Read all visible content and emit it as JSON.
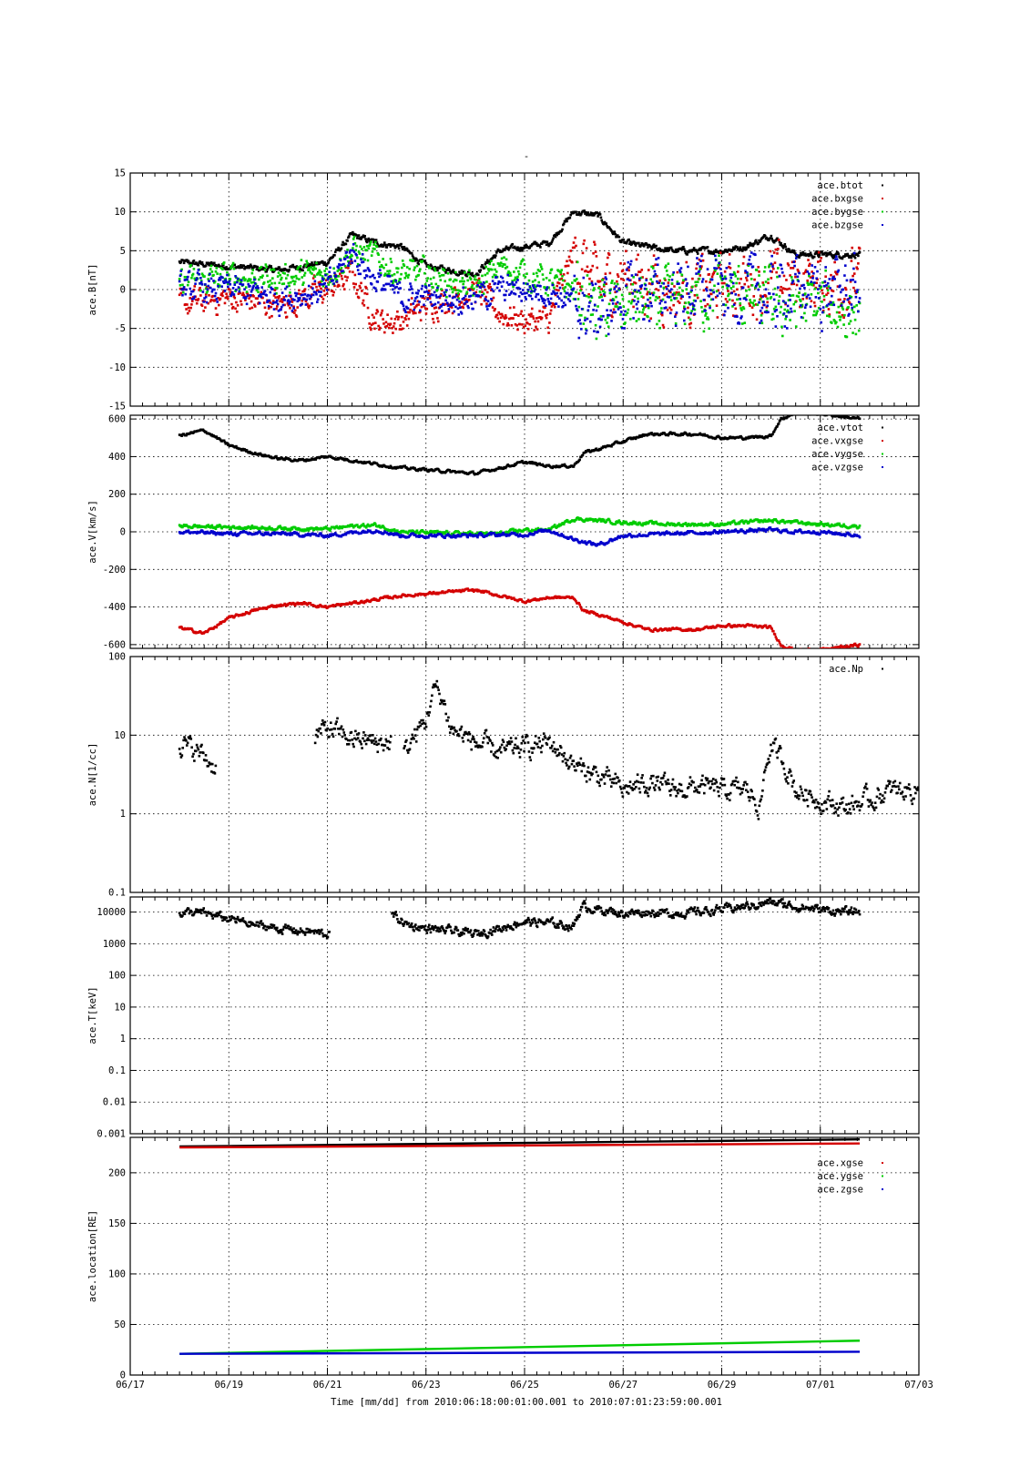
{
  "figure": {
    "title": "-",
    "xlabel": "Time [mm/dd]  from 2010:06:18:00:01:00.001  to  2010:07:01:23:59:00.001",
    "colors": {
      "black": "#000000",
      "red": "#d40000",
      "green": "#00cc00",
      "blue": "#0000cc"
    }
  },
  "chart_data": [
    {
      "type": "scatter",
      "ylabel": "ace.B[nT]",
      "xlim": [
        "06/17",
        "07/03"
      ],
      "ylim": [
        -15,
        15
      ],
      "ytick_labels": [
        "-15",
        "-10",
        "-5",
        "0",
        "5",
        "10",
        "15"
      ],
      "grid": true,
      "legend": "top-right",
      "series": [
        {
          "name": "ace.btot",
          "color": "#000000",
          "x": [
            "06/18",
            "06/19",
            "06/20",
            "06/21",
            "06/21.5",
            "06/22",
            "06/22.5",
            "06/23",
            "06/24",
            "06/24.5",
            "06/25",
            "06/25.5",
            "06/26",
            "06/26.5",
            "06/27",
            "06/28",
            "06/29",
            "06/29.5",
            "06/30",
            "06/30.5",
            "07/01",
            "07/01.8"
          ],
          "values": [
            3.5,
            3,
            2.5,
            3.5,
            7,
            6,
            5.5,
            3,
            2,
            5,
            5.5,
            6,
            10,
            9.5,
            6,
            5,
            5,
            5.5,
            7,
            4.5,
            4.5,
            4.5
          ]
        },
        {
          "name": "ace.bxgse",
          "color": "#d40000",
          "x": [
            "06/18",
            "06/19",
            "06/20",
            "06/21",
            "06/21.5",
            "06/22",
            "06/22.5",
            "06/23",
            "06/24",
            "06/24.5",
            "06/25",
            "06/25.5",
            "06/26",
            "06/26.5",
            "06/27",
            "06/28",
            "06/29",
            "06/29.5",
            "06/30",
            "06/30.5",
            "07/01",
            "07/01.8"
          ],
          "values": [
            -2,
            -1,
            -2,
            0,
            2,
            -4,
            -4,
            -2,
            0,
            -3,
            -4,
            -4,
            5,
            0,
            2,
            0,
            0,
            1,
            1,
            1,
            1,
            1
          ]
        },
        {
          "name": "ace.bygse",
          "color": "#00cc00",
          "x": [
            "06/18",
            "06/19",
            "06/20",
            "06/21",
            "06/21.5",
            "06/22",
            "06/22.5",
            "06/23",
            "06/24",
            "06/24.5",
            "06/25",
            "06/25.5",
            "06/26",
            "06/26.5",
            "06/27",
            "06/28",
            "06/29",
            "06/29.5",
            "06/30",
            "06/30.5",
            "07/01",
            "07/01.8"
          ],
          "values": [
            1,
            1.5,
            1.5,
            2,
            5,
            4,
            2,
            2,
            0,
            3,
            2,
            1,
            0,
            -3,
            -2,
            -2,
            0,
            -1,
            -2,
            -2,
            -2,
            -3
          ]
        },
        {
          "name": "ace.bzgse",
          "color": "#0000cc",
          "x": [
            "06/18",
            "06/19",
            "06/20",
            "06/21",
            "06/21.5",
            "06/22",
            "06/22.5",
            "06/23",
            "06/24",
            "06/24.5",
            "06/25",
            "06/25.5",
            "06/26",
            "06/26.5",
            "06/27",
            "06/28",
            "06/29",
            "06/29.5",
            "06/30",
            "06/30.5",
            "07/01",
            "07/01.8"
          ],
          "values": [
            0,
            0,
            -1,
            0,
            5,
            1,
            -1,
            -1,
            -1,
            0,
            0,
            0,
            -2,
            -3,
            -1,
            0,
            0,
            0,
            -1,
            0,
            0,
            0
          ]
        }
      ]
    },
    {
      "type": "scatter",
      "ylabel": "ace.V[km/s]",
      "xlim": [
        "06/17",
        "07/03"
      ],
      "ylim": [
        -620,
        620
      ],
      "ytick_labels": [
        "-600",
        "-400",
        "-200",
        "0",
        "200",
        "400",
        "600"
      ],
      "grid": true,
      "legend": "top-right",
      "series": [
        {
          "name": "ace.vtot",
          "color": "#000000",
          "x": [
            "06/18",
            "06/18.5",
            "06/19",
            "06/19.5",
            "06/20",
            "06/20.5",
            "06/21",
            "06/21.5",
            "06/22",
            "06/22.5",
            "06/23",
            "06/23.5",
            "06/24",
            "06/24.5",
            "06/25",
            "06/25.5",
            "06/26",
            "06/26.2",
            "06/26.5",
            "06/27",
            "06/27.5",
            "06/28",
            "06/28.5",
            "06/29",
            "06/29.5",
            "06/30",
            "06/30.2",
            "06/30.5",
            "07/01",
            "07/01.8"
          ],
          "values": [
            510,
            540,
            460,
            420,
            390,
            380,
            400,
            380,
            360,
            340,
            330,
            320,
            310,
            340,
            370,
            350,
            350,
            420,
            440,
            480,
            520,
            520,
            520,
            500,
            500,
            510,
            600,
            630,
            630,
            600
          ]
        },
        {
          "name": "ace.vxgse",
          "color": "#d40000",
          "x": [
            "06/18",
            "06/18.5",
            "06/19",
            "06/19.5",
            "06/20",
            "06/20.5",
            "06/21",
            "06/21.5",
            "06/22",
            "06/22.5",
            "06/23",
            "06/23.5",
            "06/24",
            "06/24.5",
            "06/25",
            "06/25.5",
            "06/26",
            "06/26.2",
            "06/26.5",
            "06/27",
            "06/27.5",
            "06/28",
            "06/28.5",
            "06/29",
            "06/29.5",
            "06/30",
            "06/30.2",
            "06/30.5",
            "07/01",
            "07/01.8"
          ],
          "values": [
            -510,
            -540,
            -460,
            -420,
            -390,
            -380,
            -400,
            -380,
            -360,
            -340,
            -330,
            -320,
            -310,
            -340,
            -370,
            -350,
            -350,
            -420,
            -440,
            -480,
            -520,
            -520,
            -520,
            -500,
            -500,
            -510,
            -600,
            -630,
            -630,
            -600
          ]
        },
        {
          "name": "ace.vygse",
          "color": "#00cc00",
          "x": [
            "06/18",
            "06/19",
            "06/20",
            "06/21",
            "06/21.5",
            "06/22",
            "06/22.5",
            "06/23",
            "06/24",
            "06/24.5",
            "06/25",
            "06/25.5",
            "06/26",
            "06/26.5",
            "06/27",
            "06/28",
            "06/29",
            "06/30",
            "06/30.5",
            "07/01",
            "07/01.8"
          ],
          "values": [
            30,
            25,
            20,
            15,
            30,
            35,
            0,
            -5,
            -10,
            -10,
            10,
            10,
            70,
            60,
            50,
            40,
            40,
            60,
            50,
            40,
            30
          ]
        },
        {
          "name": "ace.vzgse",
          "color": "#0000cc",
          "x": [
            "06/18",
            "06/19",
            "06/20",
            "06/21",
            "06/21.5",
            "06/22",
            "06/22.5",
            "06/23",
            "06/24",
            "06/24.5",
            "06/25",
            "06/25.5",
            "06/26",
            "06/26.5",
            "06/27",
            "06/28",
            "06/29",
            "06/30",
            "06/30.5",
            "07/01",
            "07/01.8"
          ],
          "values": [
            0,
            -10,
            -10,
            -20,
            -5,
            10,
            -20,
            -20,
            -20,
            -15,
            -15,
            10,
            -40,
            -70,
            -20,
            -10,
            0,
            10,
            0,
            0,
            -20
          ]
        }
      ]
    },
    {
      "type": "scatter",
      "ylabel": "ace.N[1/cc]",
      "xlim": [
        "06/17",
        "07/03"
      ],
      "ylim": [
        0.1,
        100
      ],
      "yscale": "log",
      "ytick_labels": [
        "0.1",
        "1",
        "10",
        "100"
      ],
      "grid": true,
      "legend": "top-right",
      "series": [
        {
          "name": "ace.Np",
          "color": "#000000",
          "x": [
            "06/18",
            "06/18.4",
            "06/18.7",
            "06/20.8",
            "06/21",
            "06/21.5",
            "06/22",
            "06/22.3",
            "06/22.6",
            "06/23",
            "06/23.2",
            "06/23.5",
            "06/24",
            "06/24.5",
            "06/25",
            "06/25.5",
            "06/26",
            "06/26.5",
            "06/27",
            "06/27.5",
            "06/28",
            "06/28.5",
            "06/29",
            "06/29.5",
            "06/29.8",
            "06/30",
            "06/30.5",
            "07/01",
            "07/01.5",
            "07/02",
            "07/02.5",
            "07/03"
          ],
          "values": [
            8,
            6,
            4,
            10,
            12,
            9,
            8,
            8,
            6,
            15,
            40,
            12,
            8,
            6,
            7,
            8,
            4,
            3,
            2,
            2.5,
            2,
            2.2,
            2,
            2,
            1.2,
            7,
            2,
            1.5,
            1.2,
            1.5,
            2,
            2
          ]
        }
      ]
    },
    {
      "type": "scatter",
      "ylabel": "ace.T[keV]",
      "xlim": [
        "06/17",
        "07/03"
      ],
      "ylim": [
        0.001,
        30000
      ],
      "yscale": "log",
      "ytick_labels": [
        "0.001",
        "0.01",
        "0.1",
        "1",
        "10",
        "100",
        "1000",
        "10000"
      ],
      "grid": true,
      "series": [
        {
          "name": "",
          "color": "#000000",
          "x": [
            "06/18",
            "06/18.5",
            "06/19",
            "06/19.5",
            "06/20",
            "06/20.5",
            "06/21",
            "06/22.3",
            "06/22.6",
            "06/23",
            "06/23.5",
            "06/24",
            "06/24.5",
            "06/25",
            "06/25.5",
            "06/26",
            "06/26.2",
            "06/26.5",
            "06/27",
            "06/27.5",
            "06/28",
            "06/28.5",
            "06/29",
            "06/29.5",
            "06/30",
            "06/30.5",
            "07/01",
            "07/01.5",
            "07/01.8"
          ],
          "values": [
            10000,
            9000,
            6000,
            4000,
            3000,
            2500,
            2000,
            8000,
            4000,
            3000,
            2500,
            2000,
            3000,
            5000,
            4500,
            3500,
            15000,
            12000,
            9000,
            10000,
            9000,
            10000,
            12000,
            15000,
            20000,
            15000,
            12000,
            10000,
            10000
          ]
        }
      ]
    },
    {
      "type": "line",
      "ylabel": "ace.location[RE]",
      "xlim": [
        "06/17",
        "07/03"
      ],
      "ylim": [
        0,
        235
      ],
      "ytick_labels": [
        "0",
        "50",
        "100",
        "150",
        "200"
      ],
      "xtick_labels": [
        "06/17",
        "06/19",
        "06/21",
        "06/23",
        "06/25",
        "06/27",
        "06/29",
        "07/01",
        "07/03"
      ],
      "grid": true,
      "legend": "top-right",
      "series": [
        {
          "name": "",
          "color": "#000000",
          "x": [
            "06/18",
            "07/01.8"
          ],
          "values": [
            226,
            233
          ]
        },
        {
          "name": "ace.xgse",
          "color": "#d40000",
          "x": [
            "06/18",
            "07/01.8"
          ],
          "values": [
            225,
            229
          ]
        },
        {
          "name": "ace.ygse",
          "color": "#00cc00",
          "x": [
            "06/18",
            "07/01.8"
          ],
          "values": [
            21,
            34
          ]
        },
        {
          "name": "ace.zgse",
          "color": "#0000cc",
          "x": [
            "06/18",
            "07/01.8"
          ],
          "values": [
            21,
            23
          ]
        }
      ]
    }
  ]
}
